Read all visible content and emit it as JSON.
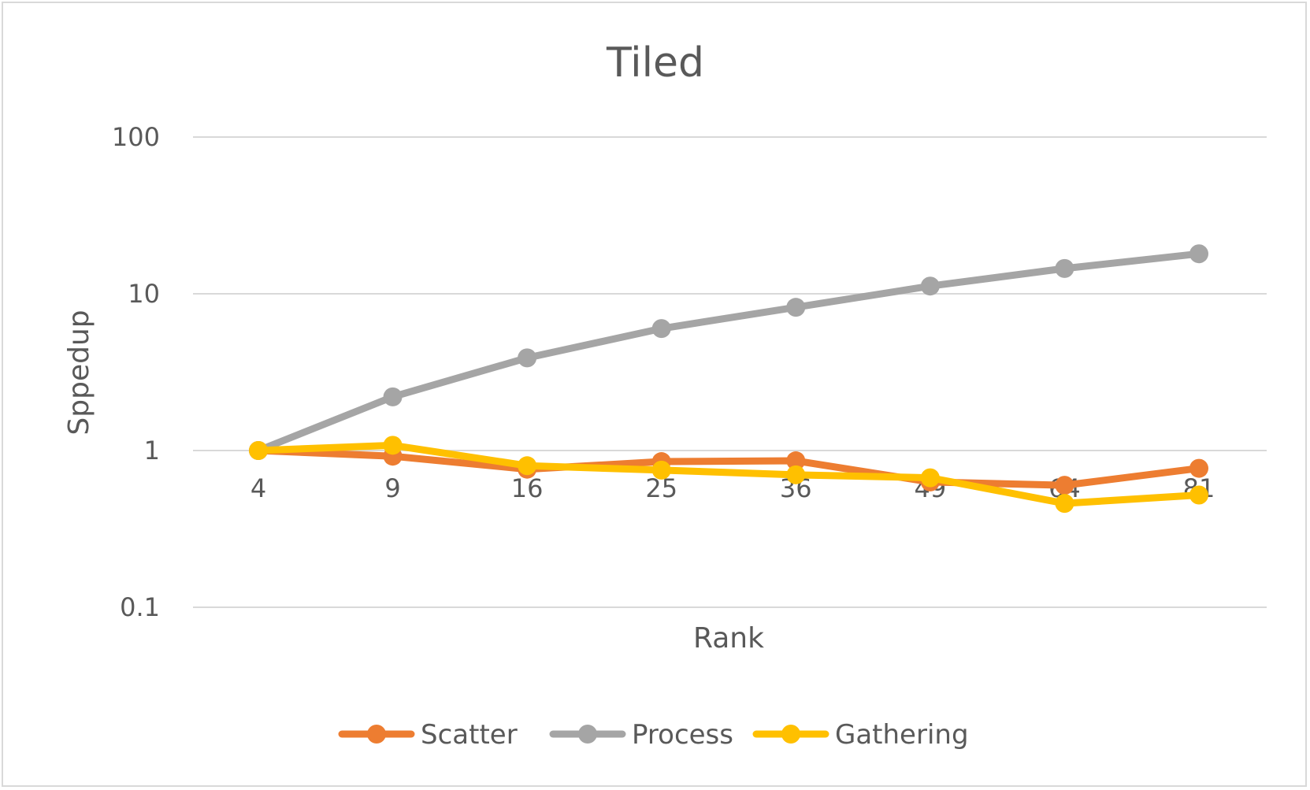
{
  "chart_data": {
    "type": "line",
    "title": "Tiled",
    "xlabel": "Rank",
    "ylabel": "Sppedup",
    "yscale": "log",
    "ylim": [
      0.1,
      100
    ],
    "yticks": [
      {
        "value": 0.1,
        "label": "0.1"
      },
      {
        "value": 1,
        "label": "1"
      },
      {
        "value": 10,
        "label": "10"
      },
      {
        "value": 100,
        "label": "100"
      }
    ],
    "categories": [
      "4",
      "9",
      "16",
      "25",
      "36",
      "49",
      "64",
      "81"
    ],
    "grid": true,
    "legend": "bottom",
    "series": [
      {
        "name": "Scatter",
        "color": "#ED7D31",
        "values": [
          1.0,
          0.92,
          0.76,
          0.85,
          0.86,
          0.63,
          0.6,
          0.77
        ]
      },
      {
        "name": "Process",
        "color": "#A5A5A5",
        "values": [
          1.0,
          2.2,
          3.9,
          6.0,
          8.2,
          11.2,
          14.5,
          18.0
        ]
      },
      {
        "name": "Gathering",
        "color": "#FFC000",
        "values": [
          1.0,
          1.08,
          0.8,
          0.75,
          0.7,
          0.67,
          0.46,
          0.52
        ]
      }
    ]
  }
}
